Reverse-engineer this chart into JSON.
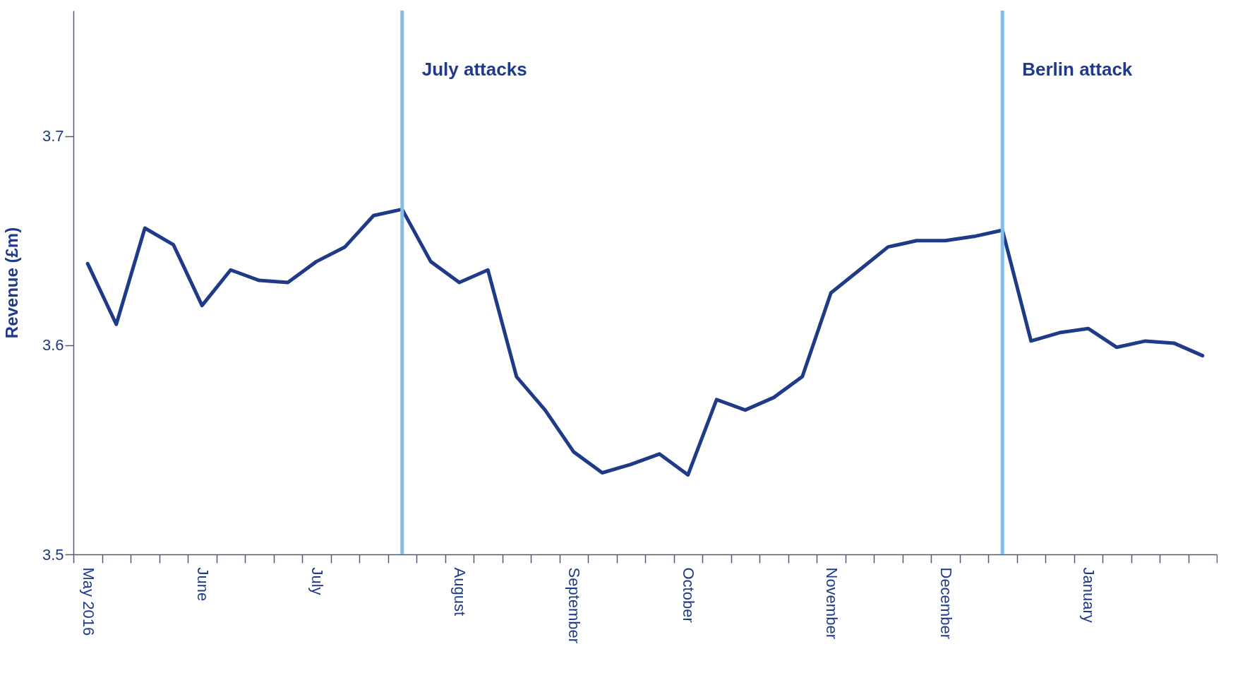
{
  "chart_data": {
    "type": "line",
    "ylabel": "Revenue (£m)",
    "categories": [
      "May 2016",
      null,
      null,
      null,
      "June",
      null,
      null,
      null,
      "July",
      null,
      null,
      null,
      null,
      "August",
      null,
      null,
      null,
      "September",
      null,
      null,
      null,
      "October",
      null,
      null,
      null,
      null,
      "November",
      null,
      null,
      null,
      "December",
      null,
      null,
      null,
      null,
      "January",
      null,
      null,
      null,
      null
    ],
    "series": [
      {
        "color": "#1f3a87",
        "values": [
          3.639,
          3.61,
          3.656,
          3.648,
          3.619,
          3.636,
          3.631,
          3.63,
          3.64,
          3.647,
          3.662,
          3.665,
          3.64,
          3.63,
          3.636,
          3.585,
          3.569,
          3.549,
          3.539,
          3.543,
          3.548,
          3.538,
          3.574,
          3.569,
          3.575,
          3.585,
          3.625,
          3.636,
          3.647,
          3.65,
          3.65,
          3.652,
          3.655,
          3.602,
          3.606,
          3.608,
          3.599,
          3.602,
          3.601,
          3.595
        ]
      }
    ],
    "ylim": [
      3.5,
      3.76
    ],
    "yticks": [
      3.5,
      3.6,
      3.7
    ],
    "annotations": [
      "July attacks",
      "Berlin attack"
    ],
    "marker": "none",
    "line_style": "solid"
  }
}
